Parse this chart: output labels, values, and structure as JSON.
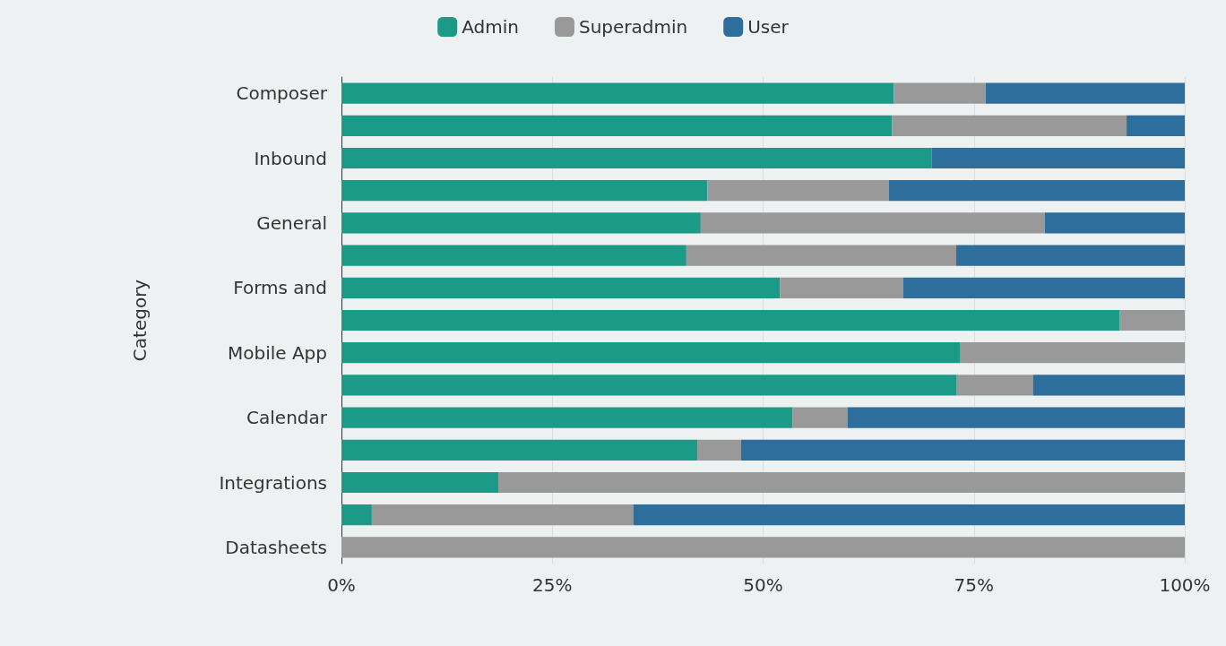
{
  "chart_data": {
    "type": "bar",
    "orientation": "horizontal",
    "stacked": true,
    "ylabel": "Category",
    "categories": [
      "Composer",
      null,
      "Inbound",
      null,
      "General",
      null,
      "Forms and",
      null,
      "Mobile App",
      null,
      "Calendar",
      null,
      "Integrations",
      null,
      "Datasheets"
    ],
    "series": [
      {
        "name": "Admin",
        "color": "#1b9a88",
        "values": [
          65.5,
          65.3,
          70,
          43.4,
          42.6,
          40.9,
          52,
          92.3,
          73.4,
          72.9,
          53.5,
          42.2,
          18.6,
          3.6,
          0
        ]
      },
      {
        "name": "Superadmin",
        "color": "#999999",
        "values": [
          10.9,
          27.8,
          0,
          21.5,
          40.8,
          32,
          14.6,
          7.7,
          26.6,
          9.1,
          6.5,
          5.2,
          81.4,
          31,
          100
        ]
      },
      {
        "name": "User",
        "color": "#2d6e9c",
        "values": [
          23.6,
          6.9,
          30,
          35.1,
          16.6,
          27.1,
          33.4,
          0,
          0,
          18,
          40,
          52.6,
          0,
          65.4,
          0
        ]
      }
    ],
    "xlim": [
      0,
      100
    ],
    "xticks": [
      {
        "value": 0,
        "label": "0%"
      },
      {
        "value": 25,
        "label": "25%"
      },
      {
        "value": 50,
        "label": "50%"
      },
      {
        "value": 75,
        "label": "75%"
      },
      {
        "value": 100,
        "label": "100%"
      }
    ],
    "grid": "x",
    "legend": "top"
  }
}
